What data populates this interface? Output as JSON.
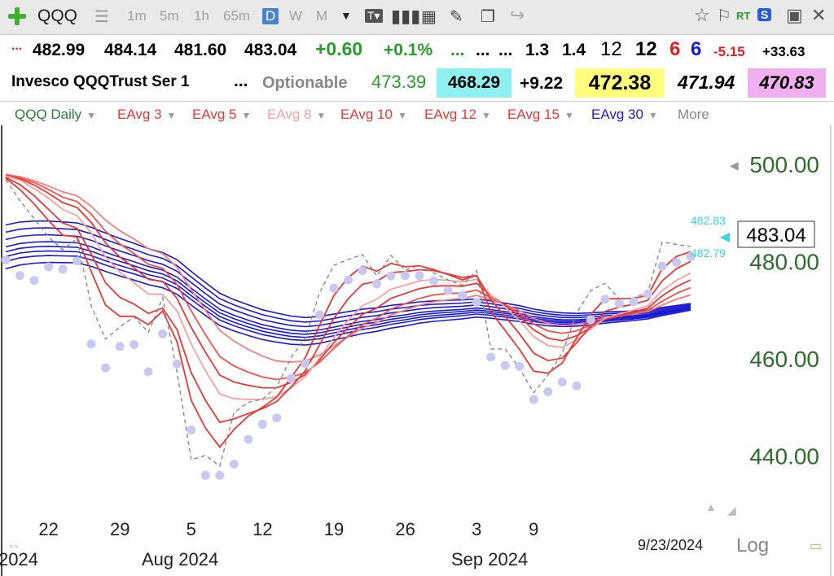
{
  "toolbar": {
    "symbol": "QQQ",
    "periods": [
      "1m",
      "5m",
      "1h",
      "65m",
      "D",
      "W",
      "M"
    ],
    "active_period": "D",
    "icons": [
      "add-symbol-icon",
      "list-icon",
      "text-icon",
      "bar-chart-icon",
      "grid-icon",
      "pencil-icon",
      "window-icon",
      "share-icon",
      "star-icon",
      "flag-icon",
      "realtime-icon",
      "scan-icon",
      "save-icon"
    ],
    "rt_label": "RT",
    "scan_label": "S"
  },
  "quote_row1": {
    "prefix": "...",
    "open": "482.99",
    "high": "484.14",
    "low": "481.60",
    "close": "483.04",
    "change": "+0.60",
    "change_pct": "+0.1%",
    "dots1": "...",
    "dots2": "...",
    "dots3": "...",
    "v1": "1.3",
    "v2": "1.4",
    "v3": "12",
    "v4": "12",
    "v5": "6",
    "v6": "6",
    "v7": "-5.15",
    "v8": "+33.63",
    "colors": {
      "green": "#2a9a2a",
      "red": "#e02020",
      "blue": "#1a1ad0"
    }
  },
  "quote_row2": {
    "name": "Invesco QQQTrust Ser 1",
    "dots": "...",
    "optionable": "Optionable",
    "q1": "473.39",
    "q2": "468.29",
    "q3": "+9.22",
    "q4": "472.38",
    "q5": "471.94",
    "q6": "470.83",
    "highlights": {
      "q2": "#8ff0f0",
      "q4": "#ffff80",
      "q6": "#f0b0f0"
    }
  },
  "studies": {
    "items": [
      {
        "label": "QQQ Daily",
        "color": "#2e7d32"
      },
      {
        "label": "EAvg 3",
        "color": "#e53935"
      },
      {
        "label": "EAvg 5",
        "color": "#e53935"
      },
      {
        "label": "EAvg 8",
        "color": "#f4a0a0"
      },
      {
        "label": "EAvg 10",
        "color": "#e53935"
      },
      {
        "label": "EAvg 12",
        "color": "#e53935"
      },
      {
        "label": "EAvg 15",
        "color": "#e53935"
      },
      {
        "label": "EAvg 30",
        "color": "#1a1ad0"
      }
    ],
    "more": "More"
  },
  "chart_data": {
    "type": "line",
    "title": "",
    "xlabel": "",
    "ylabel": "",
    "ylim": [
      428,
      508
    ],
    "y_ticks": [
      "500.00",
      "480.00",
      "460.00",
      "440.00"
    ],
    "x_tick_labels": [
      "22",
      "29",
      "5",
      "12",
      "19",
      "26",
      "3",
      "9"
    ],
    "month_labels": [
      "2024",
      "Aug 2024",
      "Sep 2024"
    ],
    "last_date": "9/23/2024",
    "log_label": "Log",
    "last_price_label": "483.04",
    "band_labels": [
      "482.83",
      "482.79"
    ],
    "close": [
      496.8,
      492.5,
      488.8,
      485.0,
      482.4,
      484.7,
      470.8,
      464.0,
      466.5,
      468.6,
      465.4,
      472.5,
      457.3,
      439.2,
      440.1,
      437.9,
      448.9,
      451.0,
      451.7,
      454.2,
      460.2,
      464.2,
      473.6,
      479.2,
      480.4,
      481.4,
      477.0,
      481.2,
      478.2,
      479.2,
      477.6,
      476.2,
      475.1,
      478.1,
      462.0,
      462.0,
      458.0,
      453.0,
      456.6,
      461.1,
      469.3,
      474.0,
      475.5,
      472.3,
      472.5,
      473.6,
      484.0,
      483.5,
      483.04
    ],
    "dots": [
      480.3,
      477.1,
      476.1,
      478.9,
      478.4,
      480.1,
      463.0,
      458.1,
      462.5,
      462.9,
      457.3,
      465.1,
      458.9,
      445.3,
      436.0,
      436.0,
      438.3,
      443.4,
      446.5,
      447.8,
      455.9,
      458.9,
      469.0,
      474.5,
      476.2,
      478.1,
      475.4,
      477.0,
      477.1,
      477.1,
      476.0,
      474.0,
      473.0,
      471.6,
      460.3,
      458.6,
      458.4,
      451.6,
      453.2,
      455.2,
      454.4,
      468.0,
      472.2,
      471.3,
      471.7,
      473.3,
      479.0,
      479.8,
      481.0
    ],
    "series": [
      {
        "values": [
          497.1,
          494.8,
          491.8,
          488.4,
          485.4,
          485.0,
          477.9,
          471.0,
          468.7,
          468.7,
          467.0,
          469.8,
          463.5,
          451.4,
          445.7,
          441.8,
          445.4,
          448.2,
          450.0,
          452.1,
          456.1,
          460.2,
          466.9,
          473.0,
          476.7,
          479.0,
          478.0,
          479.6,
          478.9,
          479.1,
          478.3,
          477.3,
          476.2,
          477.1,
          469.6,
          465.8,
          461.9,
          457.4,
          457.0,
          459.1,
          464.2,
          469.1,
          472.3,
          472.3,
          472.4,
          473.0,
          478.5,
          481.0,
          482.0
        ]
      },
      {
        "values": [
          497.3,
          495.8,
          493.5,
          490.7,
          487.9,
          486.8,
          481.5,
          475.6,
          472.6,
          471.2,
          469.3,
          470.4,
          466.0,
          457.1,
          451.4,
          446.9,
          447.6,
          448.7,
          449.7,
          451.2,
          454.2,
          457.5,
          462.9,
          468.3,
          472.3,
          475.3,
          475.9,
          477.7,
          477.9,
          478.3,
          478.1,
          477.4,
          476.7,
          477.1,
          472.1,
          468.7,
          465.1,
          461.1,
          459.6,
          460.1,
          463.2,
          466.8,
          469.7,
          470.6,
          471.2,
          472.0,
          476.0,
          478.5,
          480.0
        ]
      },
      {
        "values": [
          497.6,
          496.7,
          495.0,
          493.0,
          490.7,
          489.4,
          485.8,
          480.9,
          477.8,
          475.6,
          473.3,
          473.2,
          469.8,
          463.0,
          457.5,
          452.7,
          451.8,
          451.6,
          451.6,
          452.2,
          454.0,
          456.3,
          460.2,
          464.4,
          467.9,
          470.9,
          472.2,
          474.3,
          475.1,
          476.0,
          476.3,
          476.1,
          475.8,
          476.3,
          473.1,
          470.6,
          467.8,
          464.5,
          462.7,
          462.3,
          463.8,
          466.1,
          468.3,
          469.2,
          470.0,
          470.9,
          474.0,
          476.1,
          477.6
        ]
      },
      {
        "values": [
          497.7,
          497.0,
          495.7,
          494.0,
          492.1,
          491.1,
          488.0,
          483.8,
          480.9,
          478.7,
          476.3,
          475.9,
          472.4,
          466.4,
          461.3,
          456.6,
          455.2,
          454.5,
          454.0,
          454.0,
          455.1,
          456.7,
          459.8,
          463.3,
          466.4,
          469.1,
          470.4,
          472.4,
          473.4,
          474.4,
          474.9,
          475.0,
          474.9,
          475.5,
          473.0,
          471.0,
          468.7,
          465.9,
          464.2,
          463.7,
          464.7,
          466.4,
          468.1,
          468.9,
          469.6,
          470.4,
          472.9,
          474.8,
          476.2
        ]
      },
      {
        "values": [
          497.8,
          497.2,
          496.2,
          494.8,
          493.2,
          492.3,
          489.7,
          486.2,
          483.6,
          481.6,
          479.4,
          478.6,
          475.3,
          469.8,
          464.9,
          460.4,
          458.5,
          457.2,
          456.2,
          455.7,
          456.2,
          457.1,
          459.3,
          462.1,
          464.7,
          467.0,
          468.3,
          470.2,
          471.3,
          472.4,
          473.1,
          473.4,
          473.5,
          474.1,
          472.5,
          471.0,
          469.3,
          467.1,
          465.7,
          465.2,
          465.7,
          466.9,
          468.1,
          468.7,
          469.3,
          470.0,
          471.8,
          473.4,
          474.6
        ]
      },
      {
        "values": [
          497.9,
          497.4,
          496.6,
          495.5,
          494.3,
          493.5,
          491.3,
          488.5,
          486.3,
          484.6,
          482.6,
          481.6,
          478.8,
          474.2,
          469.9,
          465.8,
          463.6,
          461.9,
          460.5,
          459.5,
          459.3,
          459.5,
          460.8,
          462.6,
          464.5,
          466.3,
          467.4,
          469.0,
          470.0,
          471.0,
          471.7,
          472.1,
          472.4,
          473.0,
          472.1,
          471.1,
          469.9,
          468.3,
          467.2,
          466.8,
          467.0,
          467.6,
          468.4,
          468.8,
          469.2,
          469.7,
          471.0,
          472.2,
          473.1
        ]
      },
      {
        "values": [
          482.0,
          482.7,
          483.0,
          483.1,
          483.0,
          482.9,
          482.1,
          481.0,
          480.0,
          479.1,
          478.1,
          477.4,
          476.0,
          473.7,
          471.5,
          469.4,
          468.2,
          467.2,
          466.3,
          465.7,
          465.2,
          465.0,
          465.3,
          465.9,
          466.5,
          467.1,
          467.5,
          468.1,
          468.5,
          469.0,
          469.3,
          469.5,
          469.7,
          470.0,
          469.7,
          469.3,
          468.9,
          468.3,
          467.9,
          467.7,
          467.7,
          467.9,
          468.2,
          468.4,
          468.6,
          468.9,
          469.5,
          470.0,
          470.5
        ]
      }
    ],
    "blue_band_offsets": [
      -3.5,
      -2,
      -1,
      0,
      1,
      2.5,
      4,
      5.5
    ],
    "colors": {
      "price": "#888888",
      "dots": "#c8c8f0",
      "red_lines": [
        "#e53935",
        "#e53935",
        "#f4a0a0",
        "#e53935",
        "#ef5350",
        "#f28080"
      ],
      "blue": "#1a1ad0",
      "axis_text": "#2e6b2e",
      "band_label": "#37d5e5"
    }
  }
}
